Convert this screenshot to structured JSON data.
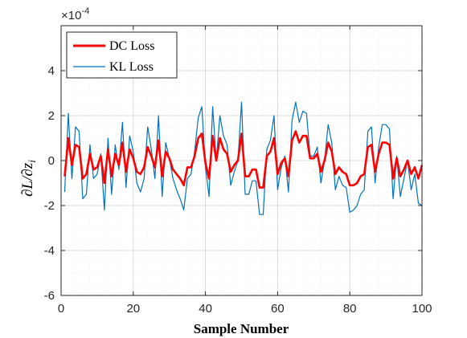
{
  "chart_data": {
    "type": "line",
    "xlabel": "Sample Number",
    "ylabel": "∂L/∂z",
    "ylabel_sub": "i",
    "xlim": [
      0,
      100
    ],
    "ylim": [
      -6,
      6
    ],
    "xticks": [
      0,
      20,
      40,
      60,
      80,
      100
    ],
    "yticks": [
      -6,
      -4,
      -2,
      0,
      2,
      4
    ],
    "xtick_labels": [
      "0",
      "20",
      "40",
      "60",
      "80",
      "100"
    ],
    "ytick_labels": [
      "-6",
      "-4",
      "-2",
      "0",
      "2",
      "4"
    ],
    "y_multiplier_base": "×10",
    "y_multiplier_exp": "-4",
    "grid": true,
    "minor_grid": true,
    "legend_position": "top-left",
    "colors": {
      "dc": "#ff0000",
      "kl": "#0072bd"
    },
    "series": [
      {
        "name": "DC Loss",
        "values": [
          -0.7,
          1.0,
          -0.2,
          0.7,
          0.6,
          -0.8,
          -0.6,
          0.3,
          -0.4,
          -0.3,
          0.2,
          -1.0,
          0.5,
          -0.7,
          0.3,
          -0.2,
          0.8,
          -0.5,
          0.5,
          0.1,
          -0.5,
          -0.6,
          -0.3,
          0.6,
          0.2,
          -0.3,
          0.9,
          -0.7,
          0.4,
          0.1,
          -0.4,
          -0.6,
          -0.8,
          -1.1,
          -0.3,
          -0.3,
          0.2,
          1.0,
          1.2,
          -0.1,
          -0.8,
          1.1,
          0.0,
          1.0,
          0.5,
          0.3,
          -0.5,
          -0.2,
          0.0,
          1.2,
          -0.7,
          -0.7,
          -0.4,
          -0.4,
          -1.2,
          -1.2,
          0.2,
          0.4,
          1.0,
          -0.6,
          -0.1,
          0.1,
          -0.7,
          0.9,
          1.3,
          0.8,
          1.1,
          1.1,
          0.1,
          0.1,
          0.3,
          -0.5,
          0.0,
          0.8,
          0.4,
          -0.6,
          -0.3,
          -0.5,
          -0.6,
          -1.1,
          -1.1,
          -1.0,
          -0.7,
          -0.6,
          0.6,
          0.7,
          -0.5,
          0.3,
          0.8,
          0.8,
          0.7,
          -0.8,
          0.1,
          -0.7,
          -0.4,
          0.0,
          -0.6,
          -0.3,
          -0.8,
          -0.2
        ]
      },
      {
        "name": "KL Loss",
        "values": [
          -1.4,
          2.1,
          -0.8,
          1.5,
          1.3,
          -1.7,
          -1.5,
          0.7,
          -0.8,
          -0.6,
          0.3,
          -2.2,
          1.0,
          -1.5,
          0.7,
          -0.4,
          1.7,
          -1.2,
          1.1,
          0.4,
          -1.0,
          -1.4,
          -0.8,
          1.5,
          0.5,
          -0.8,
          2.0,
          -1.6,
          0.8,
          0.1,
          -0.8,
          -1.3,
          -1.7,
          -2.2,
          -0.8,
          -0.6,
          0.4,
          1.9,
          2.4,
          -0.3,
          -1.6,
          2.4,
          0.0,
          2.0,
          1.1,
          0.7,
          -1.1,
          -0.5,
          0.0,
          2.6,
          -1.5,
          -1.5,
          -0.9,
          -0.9,
          -2.4,
          -2.4,
          0.5,
          0.9,
          2.0,
          -1.3,
          -0.3,
          0.2,
          -1.4,
          1.8,
          2.6,
          1.7,
          2.2,
          2.1,
          0.2,
          0.2,
          0.6,
          -1.0,
          0.0,
          1.6,
          0.8,
          -1.3,
          -0.7,
          -1.1,
          -1.2,
          -2.3,
          -2.2,
          -2.0,
          -1.5,
          -1.3,
          1.3,
          1.5,
          -1.0,
          0.6,
          1.6,
          1.6,
          1.4,
          -1.7,
          0.2,
          -1.6,
          -0.8,
          0.0,
          -1.3,
          -0.6,
          -1.9,
          -2.0
        ]
      }
    ]
  }
}
